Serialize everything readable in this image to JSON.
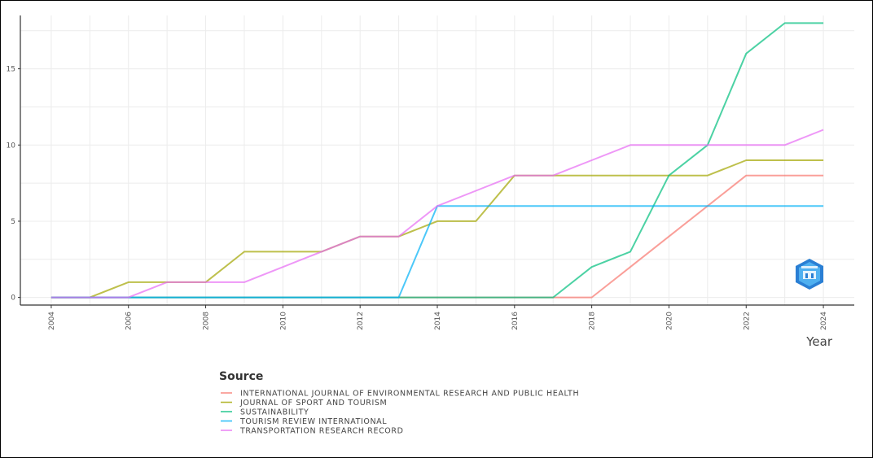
{
  "chart_data": {
    "type": "line",
    "xlabel": "Year",
    "ylabel": "",
    "ylim": [
      -0.5,
      18.5
    ],
    "xlim": [
      2003.2,
      2024.8
    ],
    "x_ticks": [
      "2004",
      "2006",
      "2008",
      "2010",
      "2012",
      "2014",
      "2016",
      "2018",
      "2020",
      "2022",
      "2024"
    ],
    "y_ticks": [
      "0",
      "5",
      "10",
      "15"
    ],
    "grid": true,
    "legend_title": "Source",
    "legend_position": "bottom",
    "x": [
      2004,
      2005,
      2006,
      2007,
      2008,
      2009,
      2010,
      2011,
      2012,
      2013,
      2014,
      2015,
      2016,
      2017,
      2018,
      2019,
      2020,
      2021,
      2022,
      2023,
      2024
    ],
    "series": [
      {
        "name": "INTERNATIONAL JOURNAL OF ENVIRONMENTAL RESEARCH AND PUBLIC HEALTH",
        "color": "#F8766D",
        "values": [
          0,
          0,
          0,
          0,
          0,
          0,
          0,
          0,
          0,
          0,
          0,
          0,
          0,
          0,
          0,
          2,
          4,
          6,
          8,
          8,
          8
        ]
      },
      {
        "name": "JOURNAL OF SPORT AND TOURISM",
        "color": "#A3A500",
        "values": [
          0,
          0,
          1,
          1,
          1,
          3,
          3,
          3,
          4,
          4,
          5,
          5,
          8,
          8,
          8,
          8,
          8,
          8,
          9,
          9,
          9
        ]
      },
      {
        "name": "SUSTAINABILITY",
        "color": "#00BF7D",
        "values": [
          0,
          0,
          0,
          0,
          0,
          0,
          0,
          0,
          0,
          0,
          0,
          0,
          0,
          0,
          2,
          3,
          8,
          10,
          16,
          18,
          18
        ]
      },
      {
        "name": "TOURISM REVIEW INTERNATIONAL",
        "color": "#00B0F6",
        "values": [
          0,
          0,
          0,
          0,
          0,
          0,
          0,
          0,
          0,
          0,
          6,
          6,
          6,
          6,
          6,
          6,
          6,
          6,
          6,
          6,
          6
        ]
      },
      {
        "name": "TRANSPORTATION RESEARCH RECORD",
        "color": "#E76BF3",
        "values": [
          0,
          0,
          0,
          1,
          1,
          1,
          2,
          3,
          4,
          4,
          6,
          7,
          8,
          8,
          9,
          10,
          10,
          10,
          10,
          10,
          11
        ]
      }
    ]
  },
  "logo": {
    "name": "shield-logo-icon"
  }
}
